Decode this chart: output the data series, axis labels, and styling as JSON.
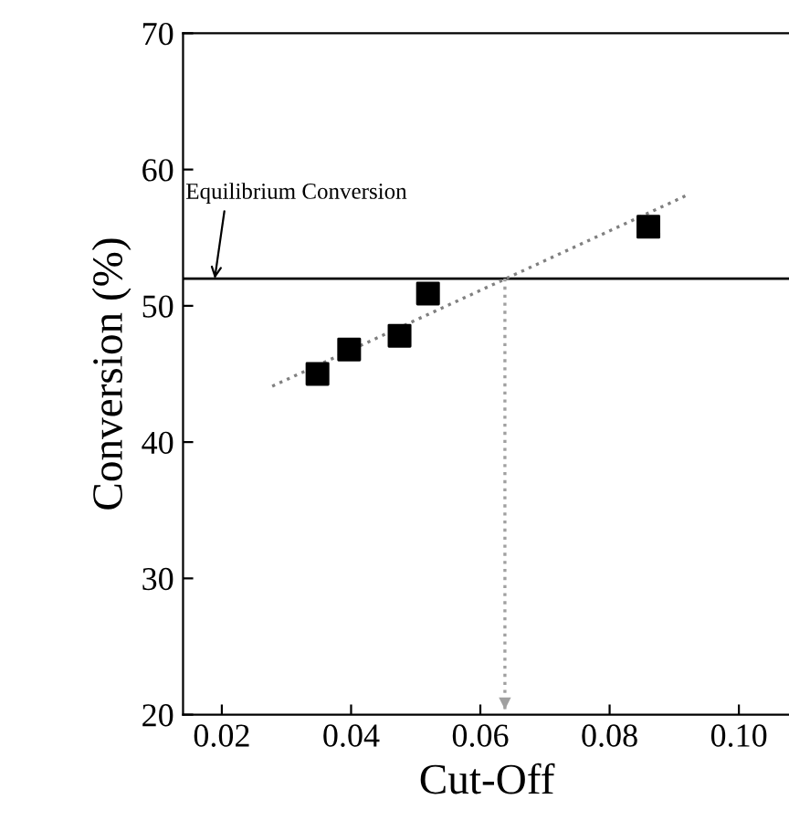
{
  "chart_data": {
    "type": "scatter",
    "xlabel": "Cut-Off",
    "ylabel": "Conversion (%)",
    "xlim": [
      0.014,
      0.108
    ],
    "xticks": [
      {
        "value": 0.02,
        "label": "0.02"
      },
      {
        "value": 0.04,
        "label": "0.04"
      },
      {
        "value": 0.06,
        "label": "0.06"
      },
      {
        "value": 0.08,
        "label": "0.08"
      },
      {
        "value": 0.1,
        "label": "0.10"
      }
    ],
    "ylim": [
      20,
      70
    ],
    "yticks": [
      20,
      30,
      40,
      50,
      60,
      70
    ],
    "grid": false,
    "legend": false,
    "marker": "square",
    "series": [
      {
        "color": "#000000",
        "x": [
          0.0348,
          0.0397,
          0.0475,
          0.0519,
          0.086
        ],
        "values": [
          45.0,
          46.8,
          47.8,
          50.9,
          55.8
        ]
      },
      {
        "type": "line",
        "color": "#808080",
        "line_style": "dotted",
        "marker": "none",
        "x": [
          0.0278,
          0.0919
        ],
        "values": [
          44.1,
          58.1
        ]
      },
      {
        "type": "line",
        "color": "#a0a0a0",
        "line_style": "dotted",
        "marker": "none",
        "x": [
          0.0638,
          0.0638
        ],
        "values": [
          52.0,
          20.0
        ]
      }
    ],
    "ref_lines": [
      {
        "axis": "y",
        "value": 52.0,
        "color": "#000000",
        "line_style": "solid"
      }
    ],
    "annotations": [
      {
        "text": "Equilibrium Conversion",
        "x": 0.0189,
        "y": 52.0
      }
    ]
  }
}
